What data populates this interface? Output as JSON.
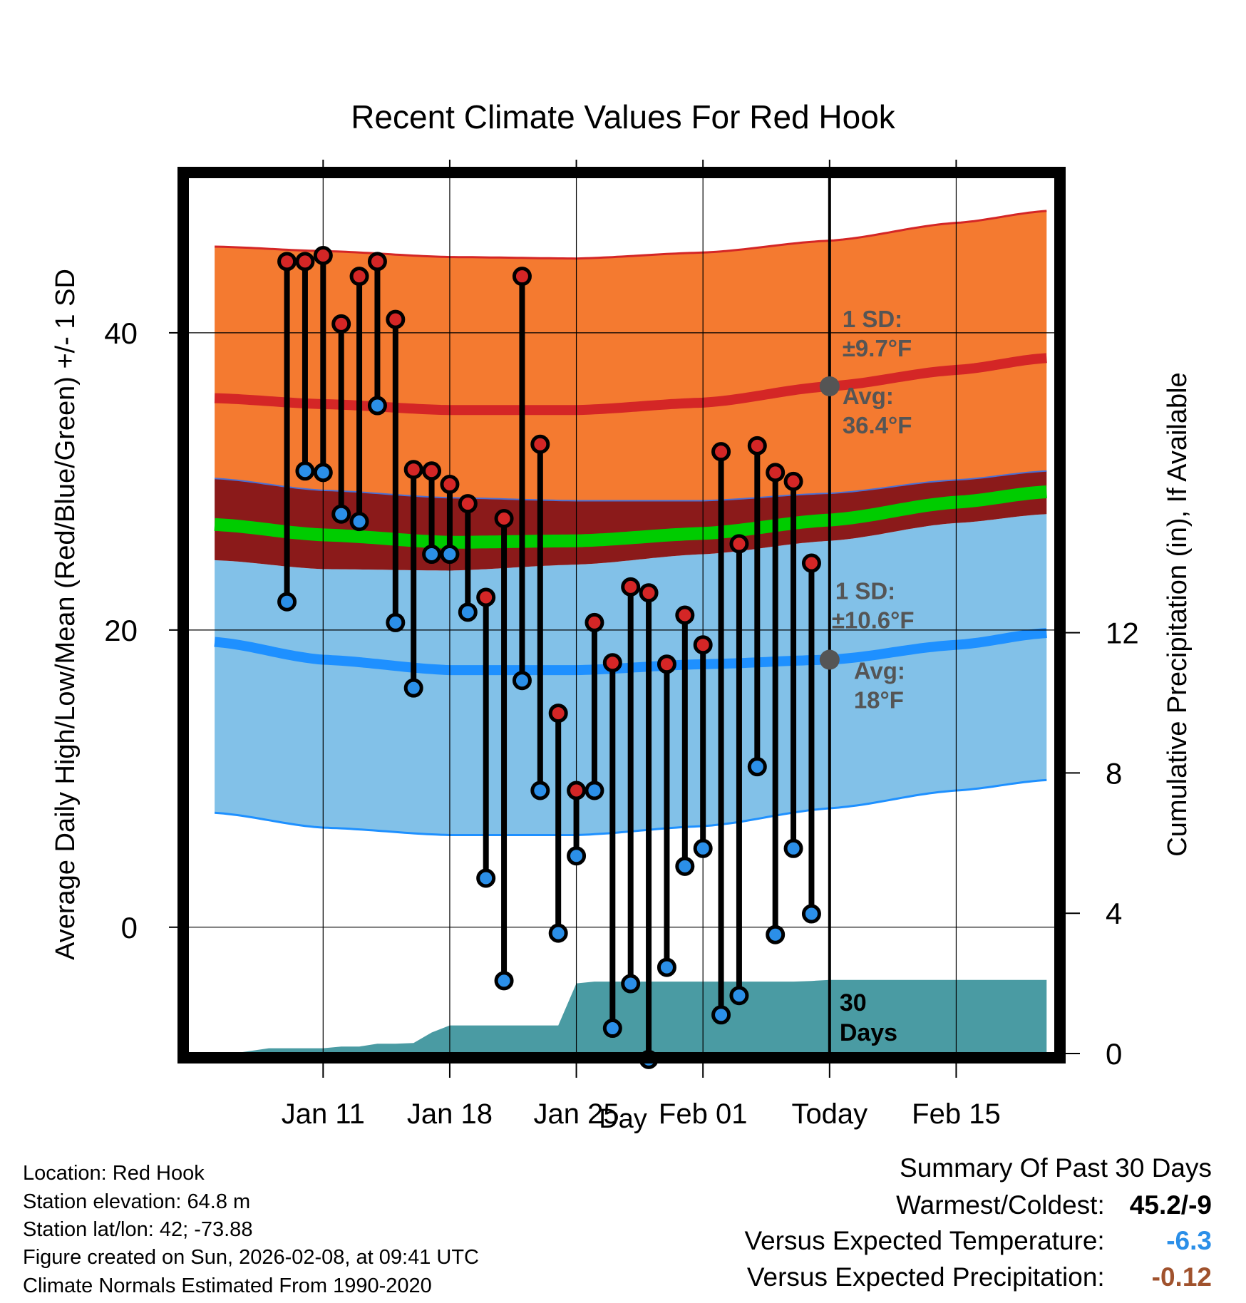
{
  "chart_data": {
    "type": "line",
    "title": "Recent Climate Values For Red Hook",
    "xlabel": "Day",
    "ylabel": "Average Daily High/Low/Mean (Red/Blue/Green) +/- 1 SD",
    "ylabel_right": "Cumulative Precipitation (in), If Available",
    "ylim": [
      -8.5,
      50.5
    ],
    "y2lim": [
      0,
      25
    ],
    "xlim": [
      -4.5,
      43.5
    ],
    "y_ticks": [
      0,
      20,
      40
    ],
    "y_tick_labels": [
      "0",
      "20",
      "40"
    ],
    "y2_ticks": [
      0,
      4,
      8,
      12
    ],
    "y2_tick_labels": [
      "0",
      "4",
      "8",
      "12"
    ],
    "x_ticks": [
      3,
      10,
      17,
      24,
      31,
      38
    ],
    "x_tick_labels": [
      "Jan 11",
      "Jan 18",
      "Jan 25",
      "Feb 01",
      "Today",
      "Feb 15"
    ],
    "today_index": 31,
    "normals": {
      "x": [
        -3,
        3,
        10,
        17,
        24,
        31,
        38,
        43
      ],
      "high_mean": [
        35.6,
        35.2,
        34.8,
        34.8,
        35.3,
        36.4,
        37.5,
        38.3
      ],
      "high_upper": [
        45.8,
        45.5,
        45.1,
        45.0,
        45.4,
        46.2,
        47.4,
        48.2
      ],
      "low_mean": [
        19.2,
        18.0,
        17.3,
        17.3,
        17.7,
        18.0,
        19.0,
        19.8
      ],
      "low_lower": [
        7.7,
        6.7,
        6.2,
        6.2,
        6.8,
        8.0,
        9.2,
        9.9
      ],
      "mean_mean": [
        27.1,
        26.4,
        25.9,
        26.0,
        26.5,
        27.4,
        28.6,
        29.3
      ],
      "mean_upper": [
        30.2,
        29.4,
        28.9,
        28.7,
        28.7,
        29.2,
        30.1,
        30.7
      ],
      "mean_lower": [
        24.7,
        24.1,
        24.0,
        24.4,
        25.1,
        26.0,
        27.2,
        27.8
      ]
    },
    "series": [
      {
        "name": "High",
        "color": "#cc2222",
        "values": [
          44.8,
          44.8,
          45.2,
          40.6,
          43.8,
          44.8,
          40.9,
          30.8,
          30.7,
          29.8,
          28.5,
          22.2,
          27.5,
          43.8,
          32.5,
          14.4,
          9.2,
          20.5,
          17.8,
          22.9,
          22.5,
          17.7,
          21.0,
          19.0,
          32.0,
          25.8,
          32.4,
          30.6,
          30.0,
          24.5
        ]
      },
      {
        "name": "Low",
        "color": "#2b8fe8",
        "values": [
          21.9,
          30.7,
          30.6,
          27.8,
          27.3,
          35.1,
          20.5,
          16.1,
          25.1,
          25.1,
          21.2,
          3.3,
          -3.6,
          16.6,
          9.2,
          -0.4,
          4.8,
          9.2,
          -6.8,
          -3.8,
          -8.9,
          -2.7,
          4.1,
          5.3,
          -5.9,
          -4.6,
          10.8,
          -0.5,
          5.3,
          0.9
        ]
      }
    ],
    "precip": {
      "x": [
        -3,
        -2,
        0,
        1,
        2,
        3,
        4,
        5,
        6,
        7,
        8,
        9,
        10,
        11,
        12,
        13,
        14,
        15,
        16,
        17,
        18,
        19,
        20,
        21,
        22,
        23,
        24,
        25,
        26,
        27,
        28,
        29,
        30,
        31,
        43
      ],
      "values": [
        0.0,
        0.0,
        0.15,
        0.15,
        0.15,
        0.15,
        0.2,
        0.2,
        0.28,
        0.28,
        0.3,
        0.6,
        0.8,
        0.8,
        0.8,
        0.8,
        0.8,
        0.8,
        0.8,
        2.0,
        2.05,
        2.05,
        2.05,
        2.05,
        2.05,
        2.05,
        2.05,
        2.05,
        2.05,
        2.05,
        2.05,
        2.05,
        2.07,
        2.1,
        2.1
      ]
    },
    "annotations": {
      "high_sd_label": "1 SD:",
      "high_sd_value": "±9.7°F",
      "high_avg_label": "Avg:",
      "high_avg_value": "36.4°F",
      "low_sd_label": "1 SD:",
      "low_sd_value": "±10.6°F",
      "low_avg_label": "Avg:",
      "low_avg_value": "18°F",
      "days_number": "30",
      "days_word": "Days"
    },
    "colors": {
      "high_band": "#f47a30",
      "high_line": "#d42626",
      "low_band": "#82c1e8",
      "low_line": "#1e90ff",
      "mean_band": "#8b1a1a",
      "mean_line": "#00cc00",
      "precip": "#4a9ba3",
      "high_dot": "#d42626",
      "low_dot": "#2b8fe8",
      "annot": "#555555"
    }
  },
  "footer": {
    "location": "Location: Red Hook",
    "elevation": "Station elevation: 64.8 m",
    "latlon": "Station lat/lon: 42; -73.88",
    "created": "Figure created on Sun, 2026-02-08, at 09:41 UTC",
    "normals": "Climate Normals Estimated From 1990-2020"
  },
  "summary": {
    "title": "Summary Of Past 30 Days",
    "warmest_label": "Warmest/Coldest:",
    "warmest_value": "45.2/-9",
    "temp_label": "Versus Expected Temperature:",
    "temp_value": "-6.3",
    "temp_color": "#2b8fe8",
    "precip_label": "Versus Expected Precipitation:",
    "precip_value": "-0.12",
    "precip_color": "#a0522d"
  }
}
